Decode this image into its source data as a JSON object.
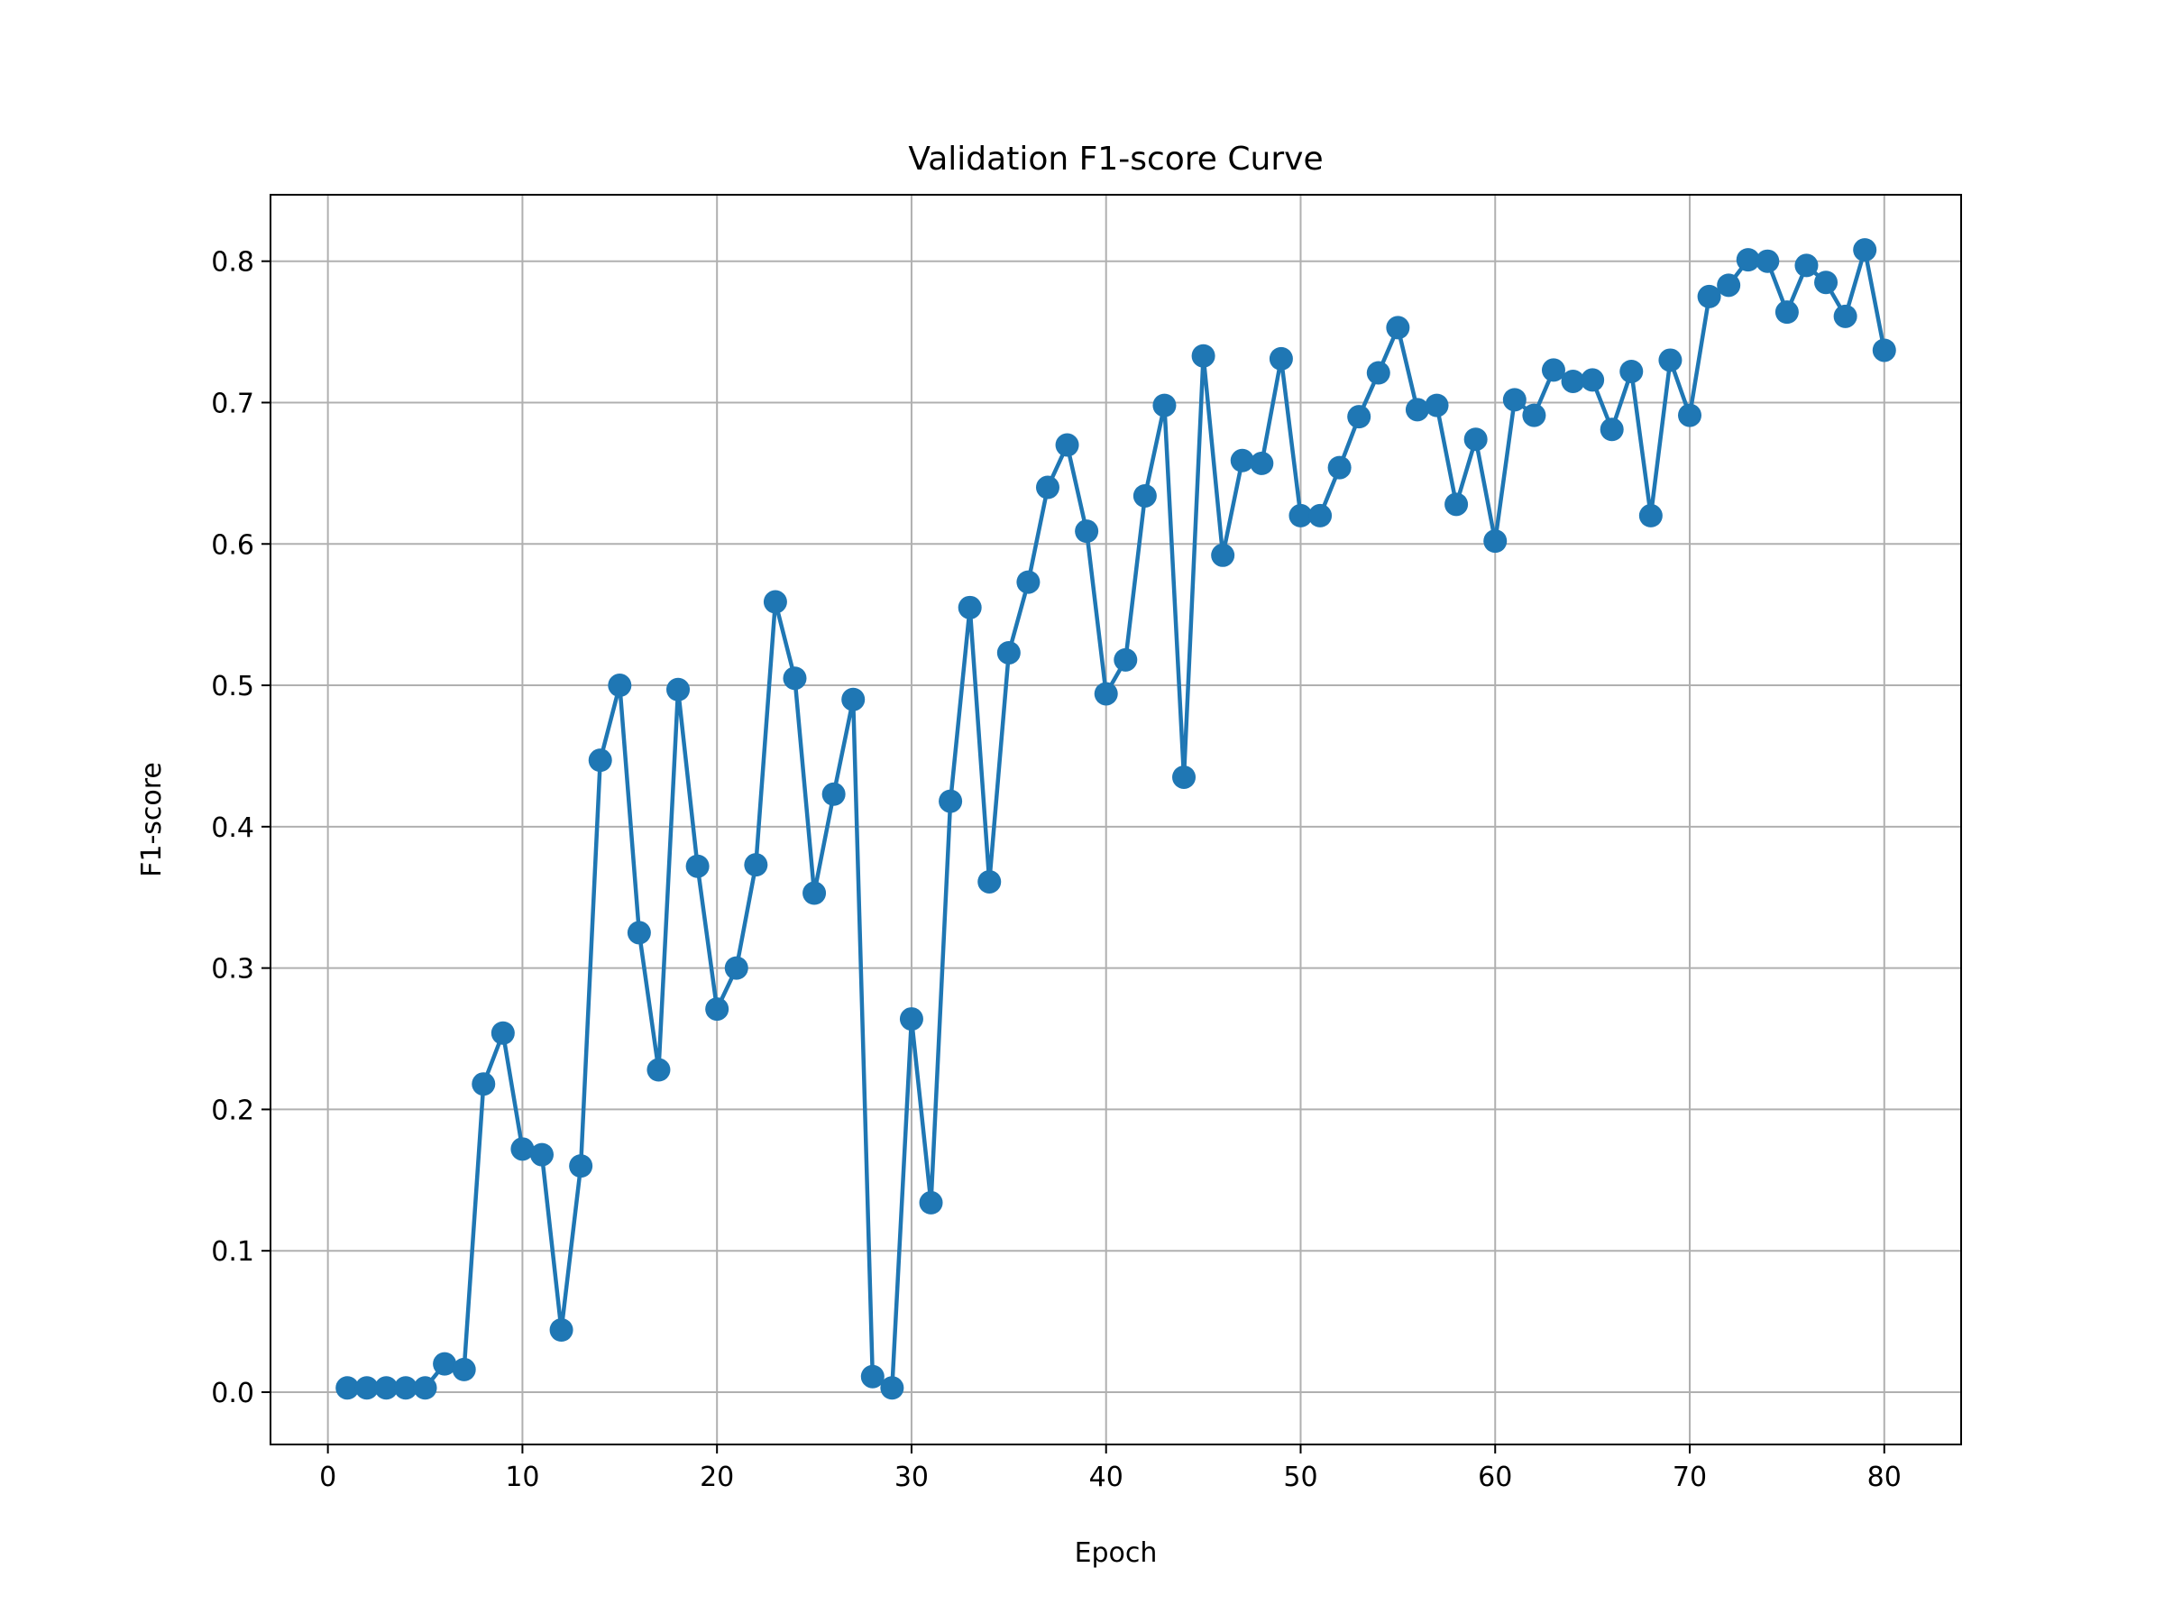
{
  "chart_data": {
    "type": "line",
    "title": "Validation F1-score Curve",
    "xlabel": "Epoch",
    "ylabel": "F1-score",
    "xlim": [
      -2.95,
      83.95
    ],
    "ylim": [
      -0.037,
      0.847
    ],
    "xticks": [
      0,
      10,
      20,
      30,
      40,
      50,
      60,
      70,
      80
    ],
    "xtick_labels": [
      "0",
      "10",
      "20",
      "30",
      "40",
      "50",
      "60",
      "70",
      "80"
    ],
    "yticks": [
      0.0,
      0.1,
      0.2,
      0.3,
      0.4,
      0.5,
      0.6,
      0.7,
      0.8
    ],
    "ytick_labels": [
      "0.0",
      "0.1",
      "0.2",
      "0.3",
      "0.4",
      "0.5",
      "0.6",
      "0.7",
      "0.8"
    ],
    "grid": true,
    "legend": "none",
    "series": [
      {
        "color": "#1f77b4",
        "marker": "circle",
        "x": [
          1,
          2,
          3,
          4,
          5,
          6,
          7,
          8,
          9,
          10,
          11,
          12,
          13,
          14,
          15,
          16,
          17,
          18,
          19,
          20,
          21,
          22,
          23,
          24,
          25,
          26,
          27,
          28,
          29,
          30,
          31,
          32,
          33,
          34,
          35,
          36,
          37,
          38,
          39,
          40,
          41,
          42,
          43,
          44,
          45,
          46,
          47,
          48,
          49,
          50,
          51,
          52,
          53,
          54,
          55,
          56,
          57,
          58,
          59,
          60,
          61,
          62,
          63,
          64,
          65,
          66,
          67,
          68,
          69,
          70,
          71,
          72,
          73,
          74,
          75,
          76,
          77,
          78,
          79,
          80
        ],
        "y": [
          0.003,
          0.003,
          0.003,
          0.003,
          0.003,
          0.02,
          0.016,
          0.218,
          0.254,
          0.172,
          0.168,
          0.044,
          0.16,
          0.447,
          0.5,
          0.325,
          0.228,
          0.497,
          0.372,
          0.271,
          0.3,
          0.373,
          0.559,
          0.505,
          0.353,
          0.423,
          0.49,
          0.011,
          0.003,
          0.264,
          0.134,
          0.418,
          0.555,
          0.361,
          0.523,
          0.573,
          0.64,
          0.67,
          0.609,
          0.494,
          0.518,
          0.634,
          0.698,
          0.435,
          0.733,
          0.592,
          0.659,
          0.657,
          0.731,
          0.62,
          0.62,
          0.654,
          0.69,
          0.721,
          0.753,
          0.695,
          0.698,
          0.628,
          0.674,
          0.602,
          0.702,
          0.691,
          0.723,
          0.715,
          0.716,
          0.681,
          0.722,
          0.62,
          0.73,
          0.691,
          0.775,
          0.783,
          0.801,
          0.8,
          0.764,
          0.797,
          0.785,
          0.761,
          0.808,
          0.737
        ]
      }
    ]
  }
}
